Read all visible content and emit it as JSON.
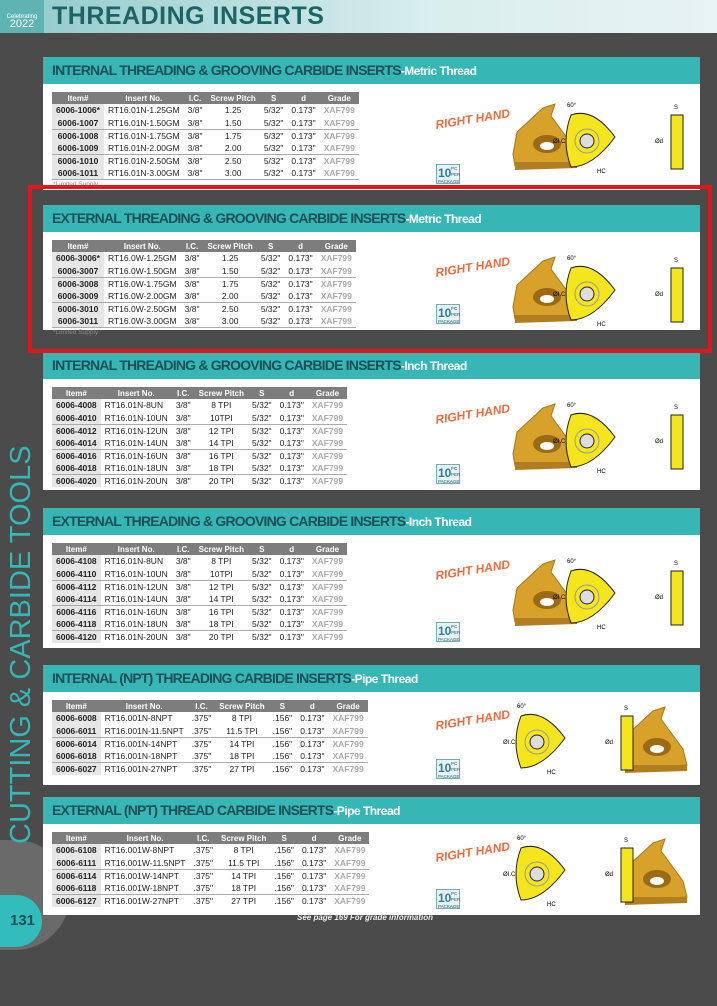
{
  "header": {
    "title": "THREADING INSERTS",
    "logo_line1": "Celebrating",
    "logo_line2": "2022"
  },
  "side_title": "CUTTING & CARBIDE TOOLS",
  "page_number": "131",
  "footer": "See page 169 For grade information",
  "right_hand": "RIGHT HAND",
  "package": {
    "count": "10",
    "pc": "PC",
    "per": "PER",
    "label": "PACKAGE"
  },
  "diagram_labels": {
    "angle": "60°",
    "ic": "ØI.C.",
    "hc": "HC",
    "d": "Ød",
    "s": "S"
  },
  "colors": {
    "teal": "#37b6b6",
    "title": "#1d4f55",
    "insert_gold": "#d7a12a",
    "diagram_yellow": "#f5e51c",
    "highlight": "#e0181e"
  },
  "columns": [
    "Item#",
    "Insert No.",
    "I.C.",
    "Screw Pitch",
    "S",
    "d",
    "Grade"
  ],
  "sections": [
    {
      "title": "INTERNAL THREADING & GROOVING CARBIDE INSERTS",
      "subtitle": "-Metric Thread",
      "note": "*Limited Supply",
      "rows": [
        [
          "6006-1006*",
          "RT16.01N-1.25GM",
          "3/8\"",
          "1.25",
          "5/32\"",
          "0.173\"",
          "XAF799"
        ],
        [
          "6006-1007",
          "RT16.01N-1.50GM",
          "3/8\"",
          "1.50",
          "5/32\"",
          "0.173\"",
          "XAF799"
        ],
        [
          "6006-1008",
          "RT16.01N-1.75GM",
          "3/8\"",
          "1.75",
          "5/32\"",
          "0.173\"",
          "XAF799"
        ],
        [
          "6006-1009",
          "RT16.01N-2.00GM",
          "3/8\"",
          "2.00",
          "5/32\"",
          "0.173\"",
          "XAF799"
        ],
        [
          "6006-1010",
          "RT16.01N-2.50GM",
          "3/8\"",
          "2.50",
          "5/32\"",
          "0.173\"",
          "XAF799"
        ],
        [
          "6006-1011",
          "RT16.01N-3.00GM",
          "3/8\"",
          "3.00",
          "5/32\"",
          "0.173\"",
          "XAF799"
        ]
      ]
    },
    {
      "title": "EXTERNAL THREADING & GROOVING CARBIDE INSERTS",
      "subtitle": "-Metric Thread",
      "note": "*Limited Supply",
      "highlighted": true,
      "rows": [
        [
          "6006-3006*",
          "RT16.0W-1.25GM",
          "3/8\"",
          "1.25",
          "5/32\"",
          "0.173\"",
          "XAF799"
        ],
        [
          "6006-3007",
          "RT16.0W-1.50GM",
          "3/8\"",
          "1.50",
          "5/32\"",
          "0.173\"",
          "XAF799"
        ],
        [
          "6006-3008",
          "RT16.0W-1.75GM",
          "3/8\"",
          "1.75",
          "5/32\"",
          "0.173\"",
          "XAF799"
        ],
        [
          "6006-3009",
          "RT16.0W-2.00GM",
          "3/8\"",
          "2.00",
          "5/32\"",
          "0.173\"",
          "XAF799"
        ],
        [
          "6006-3010",
          "RT16.0W-2.50GM",
          "3/8\"",
          "2.50",
          "5/32\"",
          "0.173\"",
          "XAF799"
        ],
        [
          "6006-3011",
          "RT16.0W-3.00GM",
          "3/8\"",
          "3.00",
          "5/32\"",
          "0.173\"",
          "XAF799"
        ]
      ]
    },
    {
      "title": "INTERNAL THREADING & GROOVING CARBIDE INSERTS",
      "subtitle": "-Inch Thread",
      "rows": [
        [
          "6006-4008",
          "RT16.01N-8UN",
          "3/8\"",
          "8 TPI",
          "5/32\"",
          "0.173\"",
          "XAF799"
        ],
        [
          "6006-4010",
          "RT16.01N-10UN",
          "3/8\"",
          "10TPI",
          "5/32\"",
          "0.173\"",
          "XAF799"
        ],
        [
          "6006-4012",
          "RT16.01N-12UN",
          "3/8\"",
          "12 TPI",
          "5/32\"",
          "0.173\"",
          "XAF799"
        ],
        [
          "6006-4014",
          "RT16.01N-14UN",
          "3/8\"",
          "14 TPI",
          "5/32\"",
          "0.173\"",
          "XAF799"
        ],
        [
          "6006-4016",
          "RT16.01N-16UN",
          "3/8\"",
          "16 TPI",
          "5/32\"",
          "0.173\"",
          "XAF799"
        ],
        [
          "6006-4018",
          "RT16.01N-18UN",
          "3/8\"",
          "18 TPI",
          "5/32\"",
          "0.173\"",
          "XAF799"
        ],
        [
          "6006-4020",
          "RT16.01N-20UN",
          "3/8\"",
          "20 TPI",
          "5/32\"",
          "0.173\"",
          "XAF799"
        ]
      ]
    },
    {
      "title": "EXTERNAL THREADING & GROOVING CARBIDE INSERTS",
      "subtitle": "-Inch Thread",
      "rows": [
        [
          "6006-4108",
          "RT16.01N-8UN",
          "3/8\"",
          "8 TPI",
          "5/32\"",
          "0.173\"",
          "XAF799"
        ],
        [
          "6006-4110",
          "RT16.01N-10UN",
          "3/8\"",
          "10TPI",
          "5/32\"",
          "0.173\"",
          "XAF799"
        ],
        [
          "6006-4112",
          "RT16.01N-12UN",
          "3/8\"",
          "12 TPI",
          "5/32\"",
          "0.173\"",
          "XAF799"
        ],
        [
          "6006-4114",
          "RT16.01N-14UN",
          "3/8\"",
          "14 TPI",
          "5/32\"",
          "0.173\"",
          "XAF799"
        ],
        [
          "6006-4116",
          "RT16.01N-16UN",
          "3/8\"",
          "16 TPI",
          "5/32\"",
          "0.173\"",
          "XAF799"
        ],
        [
          "6006-4118",
          "RT16.01N-18UN",
          "3/8\"",
          "18 TPI",
          "5/32\"",
          "0.173\"",
          "XAF799"
        ],
        [
          "6006-4120",
          "RT16.01N-20UN",
          "3/8\"",
          "20 TPI",
          "5/32\"",
          "0.173\"",
          "XAF799"
        ]
      ]
    },
    {
      "title": "INTERNAL (NPT) THREADING CARBIDE INSERTS",
      "subtitle": "-Pipe Thread",
      "pipe": true,
      "rows": [
        [
          "6006-6008",
          "RT16.001N-8NPT",
          ".375\"",
          "8 TPI",
          ".156\"",
          "0.173\"",
          "XAF799"
        ],
        [
          "6006-6011",
          "RT16.001N-11.5NPT",
          ".375\"",
          "11.5 TPI",
          ".156\"",
          "0.173\"",
          "XAF799"
        ],
        [
          "6006-6014",
          "RT16.001N-14NPT",
          ".375\"",
          "14 TPI",
          ".156\"",
          "0.173\"",
          "XAF799"
        ],
        [
          "6006-6018",
          "RT16.001N-18NPT",
          ".375\"",
          "18 TPI",
          ".156\"",
          "0.173\"",
          "XAF799"
        ],
        [
          "6006-6027",
          "RT16.001N-27NPT",
          ".375\"",
          "27 TPI",
          ".156\"",
          "0.173\"",
          "XAF799"
        ]
      ]
    },
    {
      "title": "EXTERNAL (NPT) THREAD CARBIDE INSERTS",
      "subtitle": "-Pipe Thread",
      "pipe": true,
      "rows": [
        [
          "6006-6108",
          "RT16.001W-8NPT",
          ".375\"",
          "8 TPI",
          ".156\"",
          "0.173\"",
          "XAF799"
        ],
        [
          "6006-6111",
          "RT16.001W-11.5NPT",
          ".375\"",
          "11.5 TPI",
          ".156\"",
          "0.173\"",
          "XAF799"
        ],
        [
          "6006-6114",
          "RT16.001W-14NPT",
          ".375\"",
          "14 TPI",
          ".156\"",
          "0.173\"",
          "XAF799"
        ],
        [
          "6006-6118",
          "RT16.001W-18NPT",
          ".375\"",
          "18 TPI",
          ".156\"",
          "0.173\"",
          "XAF799"
        ],
        [
          "6006-6127",
          "RT16.001W-27NPT",
          ".375\"",
          "27 TPI",
          ".156\"",
          "0.173\"",
          "XAF799"
        ]
      ]
    }
  ]
}
